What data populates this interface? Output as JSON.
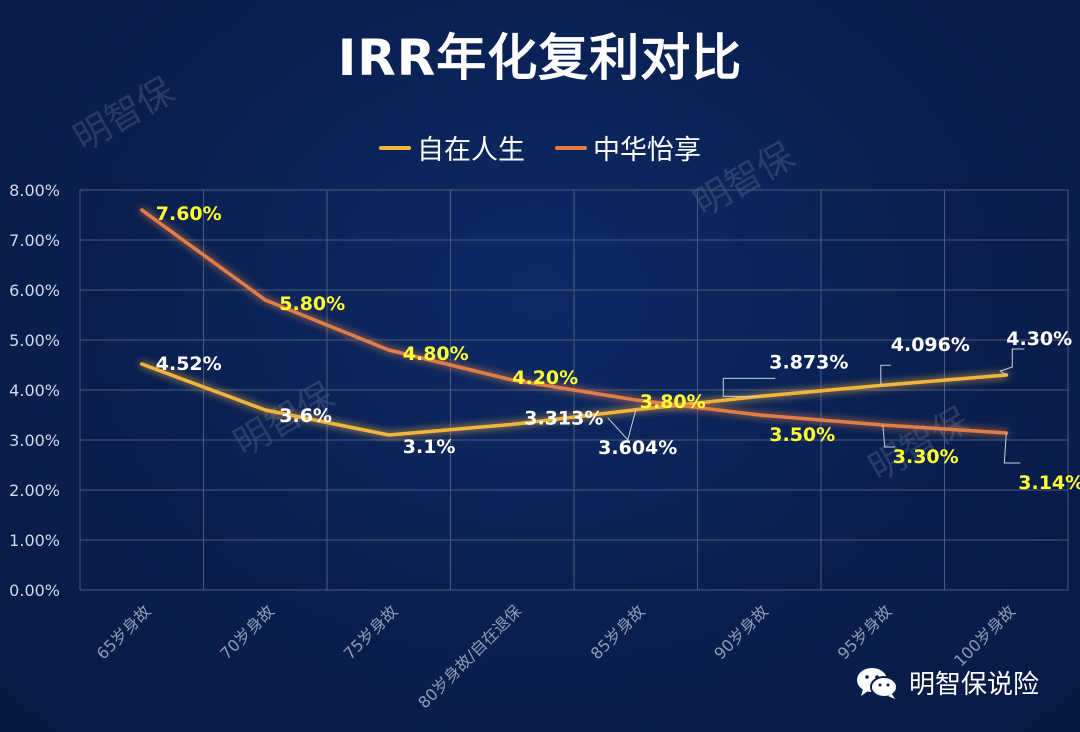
{
  "title": "IRR年化复利对比",
  "watermark": "明智保",
  "brand": {
    "text": "明智保说险",
    "icon": "wechat-icon"
  },
  "colors": {
    "series1": "#f2b53a",
    "series2": "#e07e45",
    "grid": "#4a5a7e",
    "axis_text": "#d0d8ea",
    "label_yellow": "#ffff33",
    "label_white": "#ffffff"
  },
  "chart_data": {
    "type": "line",
    "title": "IRR年化复利对比",
    "categories": [
      "65岁身故",
      "70岁身故",
      "75岁身故",
      "80岁身故/自在退保",
      "85岁身故",
      "90岁身故",
      "95岁身故",
      "100岁身故"
    ],
    "ylim": [
      0,
      8
    ],
    "yticks": [
      "0.00%",
      "1.00%",
      "2.00%",
      "3.00%",
      "4.00%",
      "5.00%",
      "6.00%",
      "7.00%",
      "8.00%"
    ],
    "grid": true,
    "legend_position": "top-center",
    "series": [
      {
        "name": "自在人生",
        "values": [
          4.52,
          3.6,
          3.1,
          3.313,
          3.604,
          3.873,
          4.096,
          4.3
        ],
        "labels": [
          "4.52%",
          "3.6%",
          "3.1%",
          "3.313%",
          "3.604%",
          "3.873%",
          "4.096%",
          "4.30%"
        ]
      },
      {
        "name": "中华怡享",
        "values": [
          7.6,
          5.8,
          4.8,
          4.2,
          3.8,
          3.5,
          3.3,
          3.14
        ],
        "labels": [
          "7.60%",
          "5.80%",
          "4.80%",
          "4.20%",
          "3.80%",
          "3.50%",
          "3.30%",
          "3.14%"
        ]
      }
    ]
  }
}
